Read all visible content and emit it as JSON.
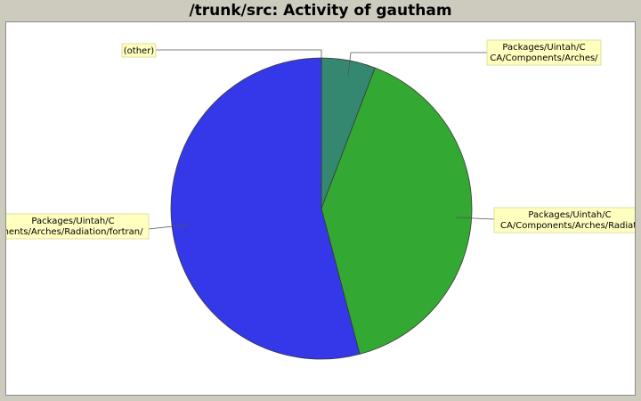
{
  "chart_data": {
    "type": "pie",
    "title": "/trunk/src: Activity of gautham",
    "slices": [
      {
        "label": "(other)",
        "label_lines": [],
        "value": 0.0,
        "color": "#ffffff"
      },
      {
        "label": "Packages/Uintah/CCA/Components/Arches/",
        "label_lines": [
          "Packages/Uintah/C",
          "CA/Components/Arches/"
        ],
        "value": 5.8,
        "color": "#348870"
      },
      {
        "label": "Packages/Uintah/CCA/Components/Arches/Radiation/",
        "label_lines": [
          "Packages/Uintah/C",
          "CA/Components/Arches/Radiati"
        ],
        "value": 40.1,
        "color": "#33a833"
      },
      {
        "label": "Packages/Uintah/CCA/Components/Arches/Radiation/fortran/",
        "label_lines": [
          "Packages/Uintah/C",
          "nents/Arches/Radiation/fortran/"
        ],
        "value": 54.1,
        "color": "#3438e8"
      }
    ],
    "other_label": "(other)"
  }
}
